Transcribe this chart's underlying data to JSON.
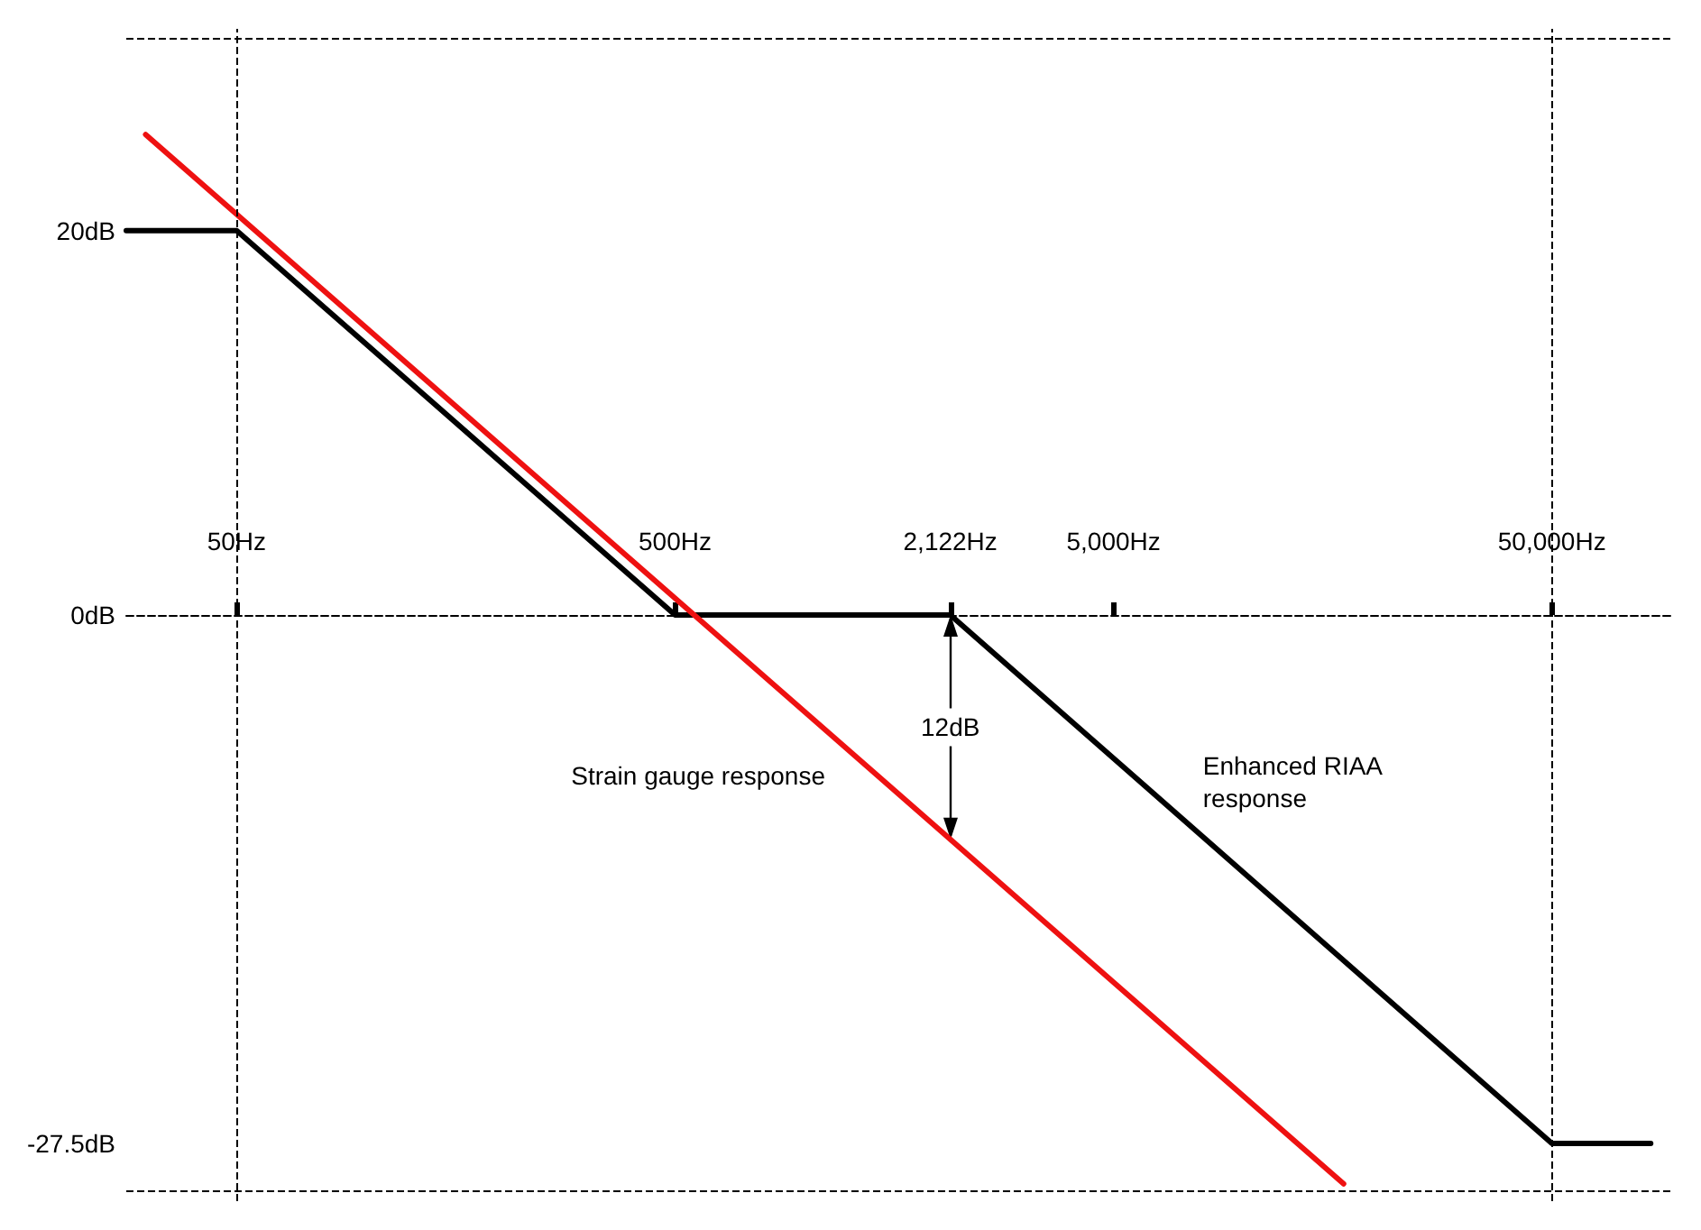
{
  "chart_data": {
    "type": "line",
    "log": "x",
    "xlim": [
      28,
      94000
    ],
    "ylim": [
      -30.5,
      30.5
    ],
    "xticks": [
      {
        "value": 50,
        "label": "50Hz"
      },
      {
        "value": 500,
        "label": "500Hz"
      },
      {
        "value": 2122,
        "label": "2,122Hz"
      },
      {
        "value": 5000,
        "label": "5,000Hz"
      },
      {
        "value": 50000,
        "label": "50,000Hz"
      }
    ],
    "yticks": [
      {
        "value": 20,
        "label": "20dB"
      },
      {
        "value": 0,
        "label": "0dB"
      },
      {
        "value": -27.5,
        "label": "-27.5dB"
      }
    ],
    "marker": "none",
    "line_style": "solid",
    "series": [
      {
        "name": "Enhanced RIAA response",
        "color": "#000000",
        "x": [
          28,
          50,
          500,
          2122,
          50000,
          84000
        ],
        "values": [
          20,
          20,
          0,
          0,
          -27.5,
          -27.5
        ]
      },
      {
        "name": "Strain gauge response",
        "color": "#ee1111",
        "x": [
          31,
          16740
        ],
        "values": [
          25,
          -29.6
        ]
      }
    ],
    "ref_lines": [
      {
        "axis": "x",
        "value": 50,
        "line_style": "dashed"
      },
      {
        "axis": "x",
        "value": 50000,
        "line_style": "dashed"
      },
      {
        "axis": "y",
        "value": 30,
        "line_style": "dashed"
      },
      {
        "axis": "y",
        "value": -30,
        "line_style": "dashed"
      }
    ],
    "annotations": [
      "12dB"
    ]
  }
}
